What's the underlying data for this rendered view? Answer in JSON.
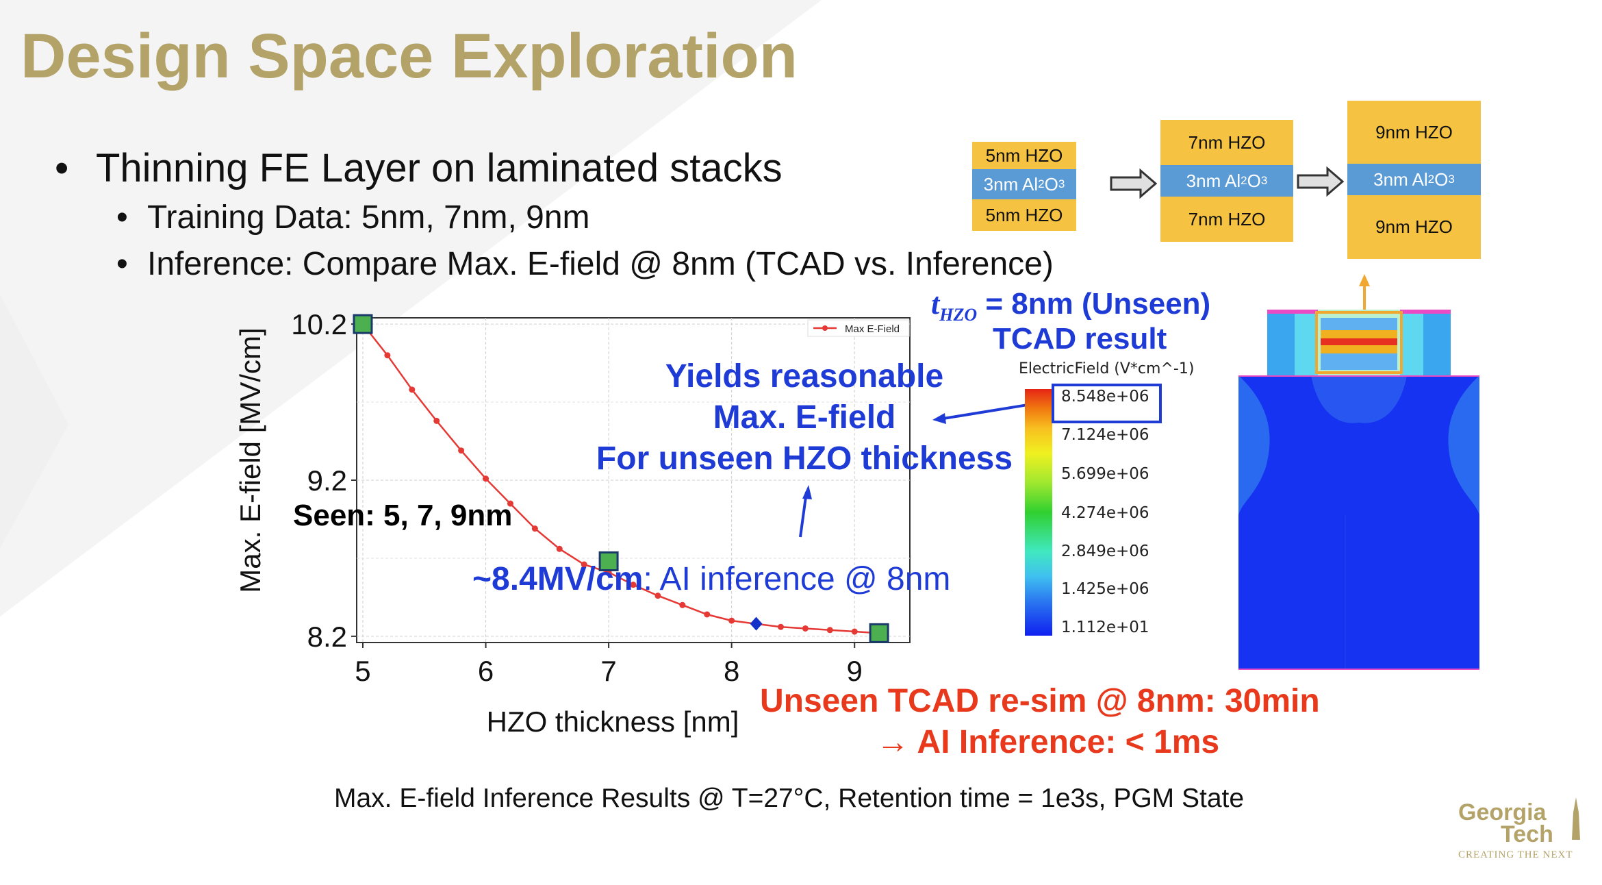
{
  "slide": {
    "title": "Design Space Exploration",
    "bullets": [
      "Thinning FE Layer on laminated stacks",
      "Training Data: 5nm, 7nm, 9nm",
      "Inference: Compare Max. E-field @ 8nm (TCAD vs. Inference)"
    ],
    "caption": "Max. E-field Inference Results @ T=27°C, Retention time = 1e3s, PGM State"
  },
  "stacks": [
    {
      "top": "5nm HZO",
      "mid_pre": "3nm Al",
      "mid_sub1": "2",
      "mid_o": "O",
      "mid_sub2": "3",
      "bottom": "5nm HZO"
    },
    {
      "top": "7nm HZO",
      "mid_pre": "3nm Al",
      "mid_sub1": "2",
      "mid_o": "O",
      "mid_sub2": "3",
      "bottom": "7nm HZO"
    },
    {
      "top": "9nm HZO",
      "mid_pre": "3nm Al",
      "mid_sub1": "2",
      "mid_o": "O",
      "mid_sub2": "3",
      "bottom": "9nm HZO"
    }
  ],
  "annotations": {
    "seen": "Seen: 5, 7, 9nm",
    "inference_bold": "~8.4MV/cm",
    "inference_rest": ": AI inference @ 8nm",
    "yields": [
      "Yields reasonable",
      "Max. E-field",
      "For unseen HZO thickness"
    ],
    "unseen_t": "t",
    "unseen_sub": "HZO",
    "unseen_rest": " = 8nm (Unseen)",
    "tcad_result": "TCAD result",
    "resim": "Unseen TCAD re-sim @ 8nm: 30min",
    "ai_inference": "→ AI Inference: < 1ms"
  },
  "colorbar": {
    "title": "ElectricField (V*cm^-1)",
    "ticks": [
      "8.548e+06",
      "7.124e+06",
      "5.699e+06",
      "4.274e+06",
      "2.849e+06",
      "1.425e+06",
      "1.112e+01"
    ]
  },
  "logo": {
    "line1": "Georgia",
    "line2": "Tech",
    "tagline": "CREATING THE NEXT"
  },
  "colors": {
    "gold": "#b3a369",
    "blue": "#1f3bd6",
    "green": "#4caf50",
    "red": "#e8391d",
    "line": "#e53935",
    "marker": "#4caf50",
    "inference_marker": "#1530c8"
  },
  "chart_data": {
    "type": "line",
    "title": "",
    "xlabel": "HZO thickness [nm]",
    "ylabel": "Max. E-field [MV/cm]",
    "xlim": [
      4.95,
      9.45
    ],
    "ylim": [
      8.16,
      10.24
    ],
    "xticks": [
      5,
      6,
      7,
      8,
      9
    ],
    "yticks": [
      8.2,
      9.2,
      10.2
    ],
    "legend": "Max E-Field",
    "legend_position": "top-right",
    "series": [
      {
        "name": "Max E-Field",
        "x": [
          5.0,
          5.2,
          5.4,
          5.6,
          5.8,
          6.0,
          6.2,
          6.4,
          6.6,
          6.8,
          7.0,
          7.2,
          7.4,
          7.6,
          7.8,
          8.0,
          8.2,
          8.4,
          8.6,
          8.8,
          9.0,
          9.2
        ],
        "y": [
          10.2,
          10.0,
          9.78,
          9.58,
          9.39,
          9.21,
          9.05,
          8.89,
          8.76,
          8.66,
          8.61,
          8.53,
          8.46,
          8.4,
          8.34,
          8.3,
          8.28,
          8.26,
          8.25,
          8.24,
          8.23,
          8.22
        ]
      }
    ],
    "seen_points": [
      {
        "x": 5.0,
        "y": 10.2
      },
      {
        "x": 7.0,
        "y": 8.68
      },
      {
        "x": 9.2,
        "y": 8.22
      }
    ],
    "inference_point": {
      "x": 8.2,
      "y": 8.28
    }
  }
}
